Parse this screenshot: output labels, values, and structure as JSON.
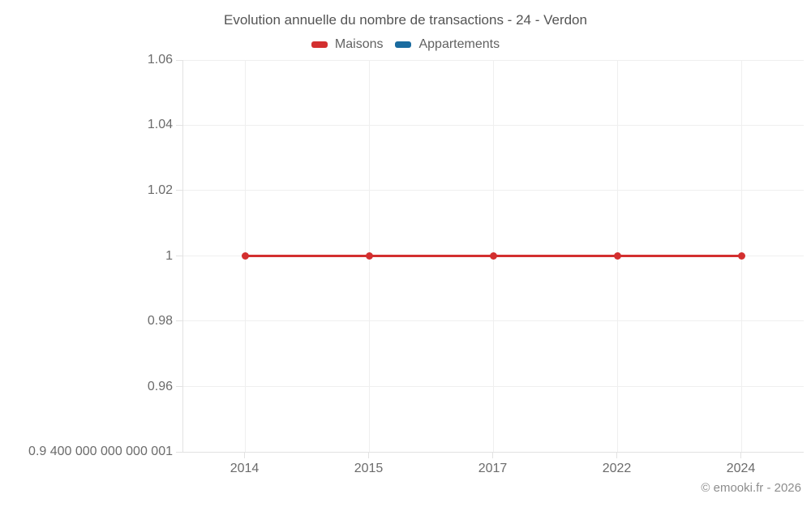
{
  "title": "Evolution annuelle du nombre de transactions - 24 - Verdon",
  "footer": "© emooki.fr - 2026",
  "legend": [
    {
      "label": "Maisons",
      "color": "#d32f2f"
    },
    {
      "label": "Appartements",
      "color": "#1a6b9f"
    }
  ],
  "chart_data": {
    "type": "line",
    "categories": [
      "2014",
      "2015",
      "2017",
      "2022",
      "2024"
    ],
    "series": [
      {
        "name": "Maisons",
        "color": "#d32f2f",
        "values": [
          1,
          1,
          1,
          1,
          1
        ]
      },
      {
        "name": "Appartements",
        "color": "#1a6b9f",
        "values": []
      }
    ],
    "title": "Evolution annuelle du nombre de transactions - 24 - Verdon",
    "xlabel": "",
    "ylabel": "",
    "ylim": [
      0.94,
      1.06
    ],
    "y_ticks": [
      {
        "value": 1.06,
        "label": "1.06"
      },
      {
        "value": 1.04,
        "label": "1.04"
      },
      {
        "value": 1.02,
        "label": "1.02"
      },
      {
        "value": 1.0,
        "label": "1"
      },
      {
        "value": 0.98,
        "label": "0.98"
      },
      {
        "value": 0.96,
        "label": "0.96"
      },
      {
        "value": 0.94,
        "label": "0.9 400 000 000 000 001"
      }
    ],
    "grid": true,
    "legend_position": "top",
    "marker_radius": 4.5,
    "line_width": 3
  }
}
